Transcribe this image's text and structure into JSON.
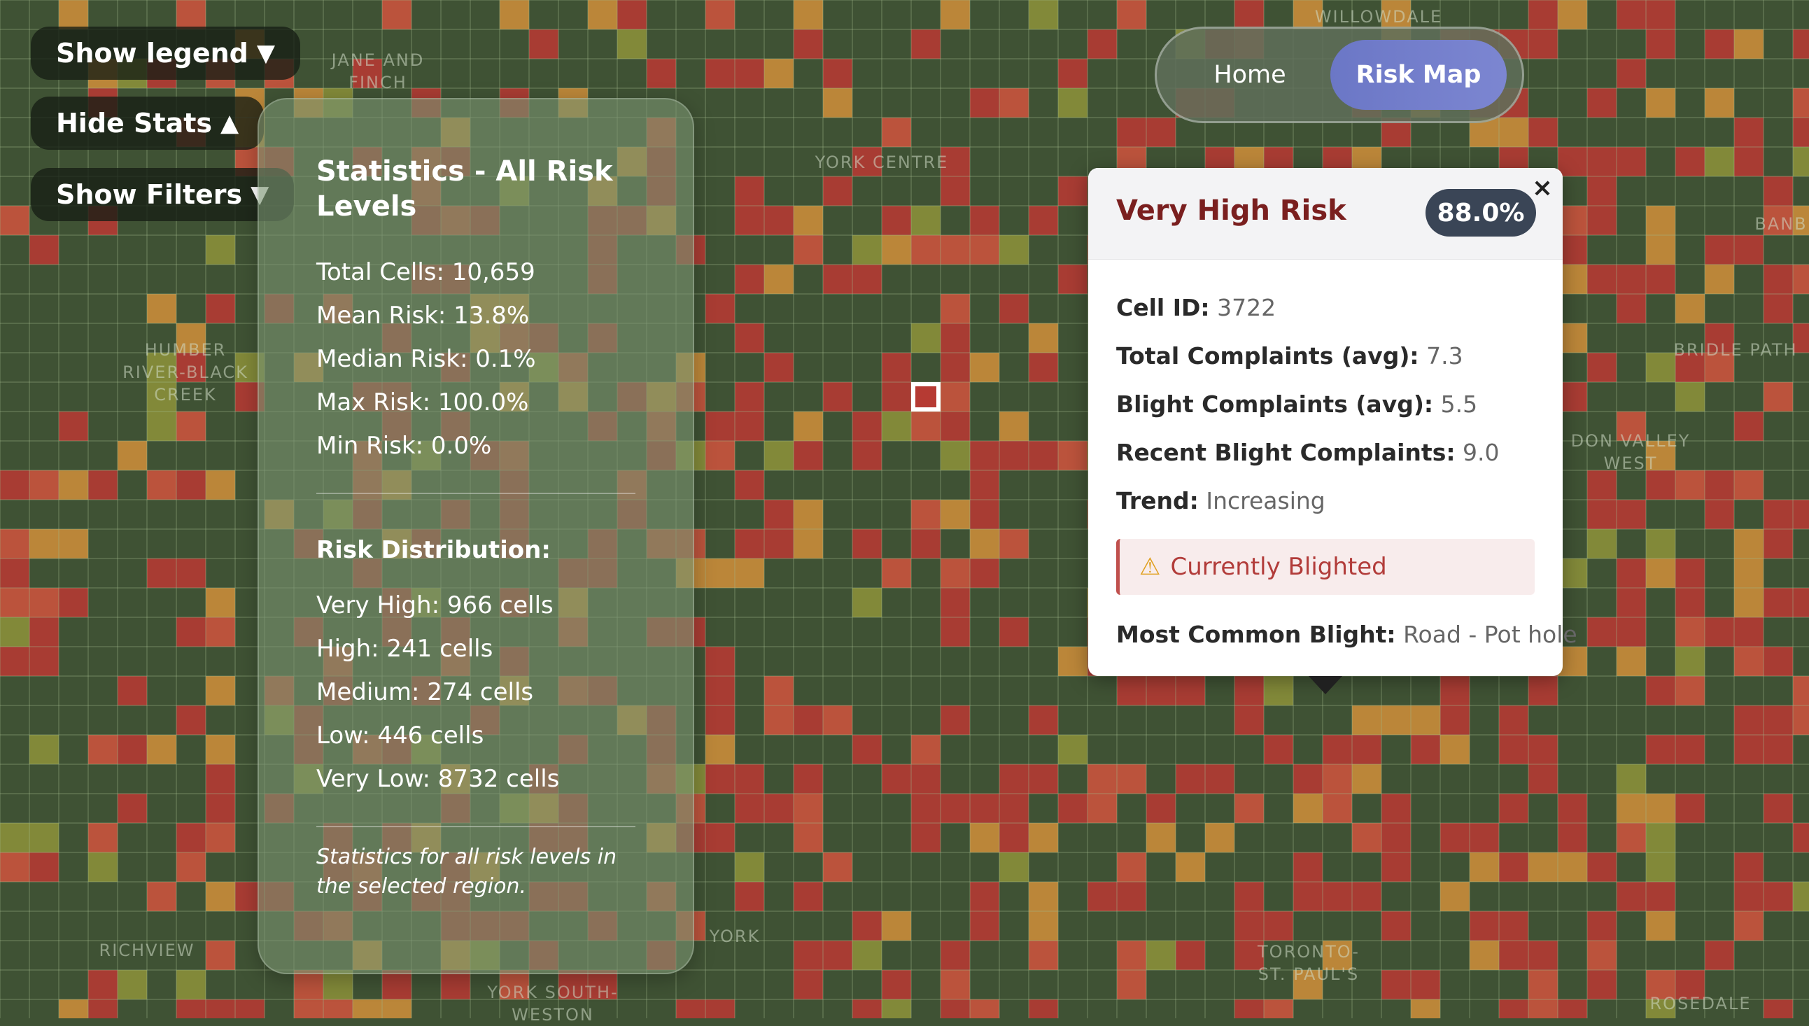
{
  "map": {
    "labels": [
      {
        "id": "label-willowdale",
        "text": "WILLOWDALE"
      },
      {
        "id": "label-jane-and-finch",
        "text": "JANE AND\nFINCH"
      },
      {
        "id": "label-york-centre",
        "text": "YORK CENTRE"
      },
      {
        "id": "label-banbury",
        "text": "BANB"
      },
      {
        "id": "label-humber-river",
        "text": "HUMBER\nRIVER-BLACK\nCREEK"
      },
      {
        "id": "label-bridle-path",
        "text": "BRIDLE PATH"
      },
      {
        "id": "label-don-valley-west",
        "text": "DON VALLEY\nWEST"
      },
      {
        "id": "label-richview",
        "text": "RICHVIEW"
      },
      {
        "id": "label-york",
        "text": "YORK"
      },
      {
        "id": "label-york-south-weston",
        "text": "YORK SOUTH-\nWESTON"
      },
      {
        "id": "label-toronto-st-pauls",
        "text": "TORONTO-\nST. PAUL'S"
      },
      {
        "id": "label-rosedale",
        "text": "ROSEDALE"
      }
    ],
    "colors": {
      "very_high": "#b43a33",
      "high": "#c9533d",
      "medium": "#c98c3a",
      "low": "#8a8f3a",
      "very_low": "#3f5234",
      "grid": "rgba(160,185,140,0.35)"
    }
  },
  "controls": {
    "show_legend": "Show legend",
    "hide_stats": "Hide Stats",
    "show_filters": "Show Filters",
    "down_arrow": "▼",
    "up_arrow": "▲"
  },
  "nav": {
    "home": "Home",
    "risk_map": "Risk Map"
  },
  "stats": {
    "title": "Statistics - All Risk Levels",
    "total_cells": "Total Cells: 10,659",
    "mean_risk": "Mean Risk: 13.8%",
    "median_risk": "Median Risk: 0.1%",
    "max_risk": "Max Risk: 100.0%",
    "min_risk": "Min Risk: 0.0%",
    "distribution_title": "Risk Distribution:",
    "very_high": "Very High: 966 cells",
    "high": "High: 241 cells",
    "medium": "Medium: 274 cells",
    "low": "Low: 446 cells",
    "very_low": "Very Low: 8732 cells",
    "note": "Statistics for all risk levels in the selected region."
  },
  "popup": {
    "title": "Very High Risk",
    "badge": "88.0%",
    "close": "×",
    "cell_id_label": "Cell ID:",
    "cell_id_value": "3722",
    "total_complaints_label": "Total Complaints (avg):",
    "total_complaints_value": "7.3",
    "blight_complaints_label": "Blight Complaints (avg):",
    "blight_complaints_value": "5.5",
    "recent_blight_label": "Recent Blight Complaints:",
    "recent_blight_value": "9.0",
    "trend_label": "Trend:",
    "trend_value": "Increasing",
    "blight_status": "Currently Blighted",
    "warning_icon": "⚠",
    "common_blight_label": "Most Common Blight:",
    "common_blight_value": "Road - Pot hole"
  }
}
